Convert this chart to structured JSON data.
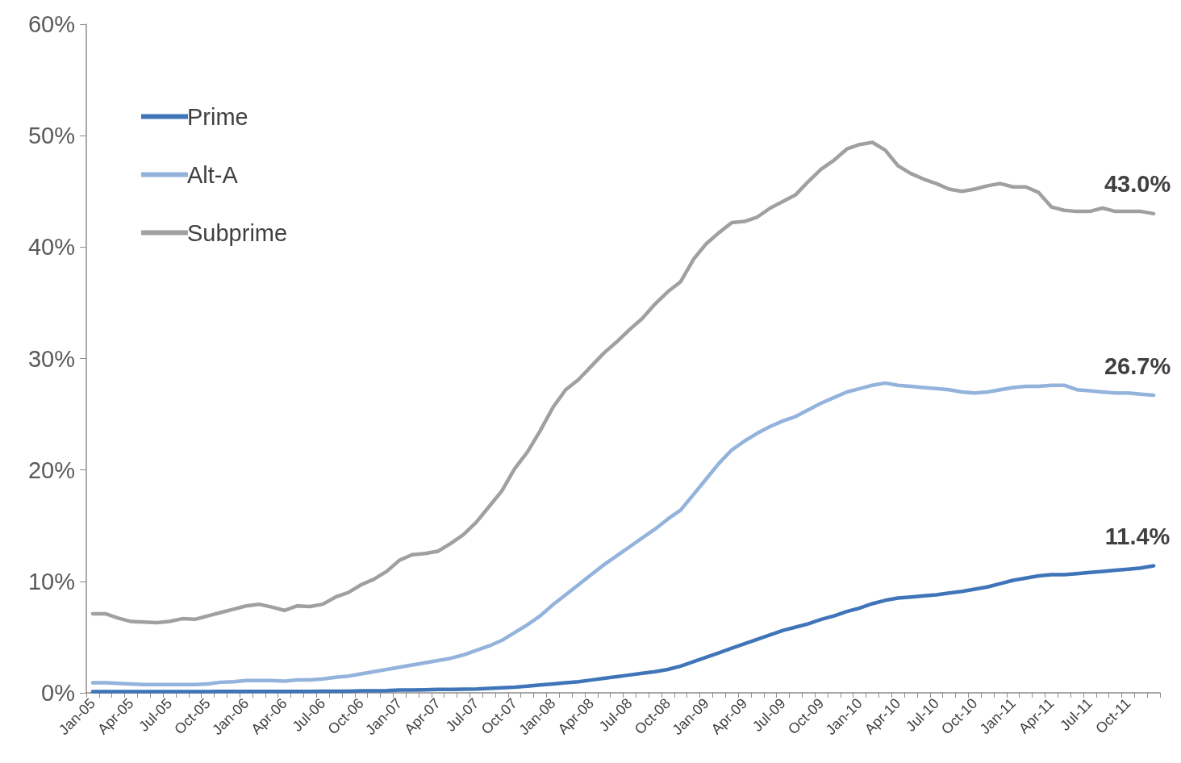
{
  "chart_data": {
    "type": "line",
    "categories": [
      "Jan-05",
      null,
      null,
      "Apr-05",
      null,
      null,
      "Jul-05",
      null,
      null,
      "Oct-05",
      null,
      null,
      "Jan-06",
      null,
      null,
      "Apr-06",
      null,
      null,
      "Jul-06",
      null,
      null,
      "Oct-06",
      null,
      null,
      "Jan-07",
      null,
      null,
      "Apr-07",
      null,
      null,
      "Jul-07",
      null,
      null,
      "Oct-07",
      null,
      null,
      "Jan-08",
      null,
      null,
      "Apr-08",
      null,
      null,
      "Jul-08",
      null,
      null,
      "Oct-08",
      null,
      null,
      "Jan-09",
      null,
      null,
      "Apr-09",
      null,
      null,
      "Jul-09",
      null,
      null,
      "Oct-09",
      null,
      null,
      "Jan-10",
      null,
      null,
      "Apr-10",
      null,
      null,
      "Jul-10",
      null,
      null,
      "Oct-10",
      null,
      null,
      "Jan-11",
      null,
      null,
      "Apr-11",
      null,
      null,
      "Jul-11",
      null,
      null,
      "Oct-11",
      null,
      null
    ],
    "series": [
      {
        "name": "Prime",
        "color": "#3f75b8",
        "values": [
          0.1,
          0.1,
          0.1,
          0.1,
          0.1,
          0.1,
          0.1,
          0.1,
          0.1,
          0.1,
          0.12,
          0.12,
          0.12,
          0.12,
          0.12,
          0.12,
          0.12,
          0.12,
          0.15,
          0.15,
          0.15,
          0.18,
          0.18,
          0.2,
          0.25,
          0.25,
          0.28,
          0.3,
          0.3,
          0.33,
          0.35,
          0.4,
          0.45,
          0.5,
          0.6,
          0.7,
          0.8,
          0.9,
          1.0,
          1.15,
          1.3,
          1.45,
          1.6,
          1.75,
          1.9,
          2.1,
          2.4,
          2.8,
          3.2,
          3.6,
          4.0,
          4.4,
          4.8,
          5.2,
          5.6,
          5.9,
          6.2,
          6.6,
          6.9,
          7.3,
          7.6,
          8.0,
          8.3,
          8.5,
          8.6,
          8.7,
          8.8,
          8.95,
          9.1,
          9.3,
          9.5,
          9.8,
          10.1,
          10.3,
          10.5,
          10.6,
          10.6,
          10.7,
          10.8,
          10.9,
          11.0,
          11.1,
          11.2,
          11.4
        ],
        "value_labels": [
          null,
          null,
          null,
          null,
          null,
          null,
          null,
          null,
          null,
          null,
          null,
          null,
          null,
          null,
          null,
          null,
          null,
          null,
          null,
          null,
          null,
          null,
          null,
          null,
          null,
          null,
          null,
          null,
          null,
          null,
          null,
          null,
          null,
          null,
          null,
          null,
          null,
          null,
          null,
          null,
          null,
          null,
          null,
          null,
          null,
          null,
          null,
          null,
          null,
          null,
          null,
          null,
          null,
          null,
          null,
          null,
          null,
          null,
          null,
          null,
          null,
          null,
          null,
          null,
          null,
          null,
          null,
          null,
          null,
          null,
          null,
          null,
          null,
          null,
          null,
          null,
          null,
          null,
          null,
          null,
          null,
          null,
          null,
          "11.4%"
        ]
      },
      {
        "name": "Alt-A",
        "color": "#93b3dc",
        "values": [
          0.9,
          0.9,
          0.85,
          0.8,
          0.75,
          0.75,
          0.75,
          0.75,
          0.75,
          0.8,
          0.95,
          1.0,
          1.1,
          1.1,
          1.1,
          1.05,
          1.15,
          1.15,
          1.25,
          1.4,
          1.5,
          1.7,
          1.9,
          2.1,
          2.3,
          2.5,
          2.7,
          2.9,
          3.1,
          3.4,
          3.8,
          4.2,
          4.7,
          5.4,
          6.1,
          6.9,
          7.9,
          8.8,
          9.7,
          10.6,
          11.5,
          12.3,
          13.1,
          13.9,
          14.7,
          15.6,
          16.4,
          17.8,
          19.2,
          20.6,
          21.8,
          22.6,
          23.3,
          23.9,
          24.4,
          24.8,
          25.4,
          26.0,
          26.5,
          27.0,
          27.3,
          27.6,
          27.8,
          27.6,
          27.5,
          27.4,
          27.3,
          27.2,
          27.0,
          26.9,
          27.0,
          27.2,
          27.4,
          27.5,
          27.5,
          27.6,
          27.6,
          27.2,
          27.1,
          27.0,
          26.9,
          26.9,
          26.8,
          26.7
        ],
        "value_labels": [
          null,
          null,
          null,
          null,
          null,
          null,
          null,
          null,
          null,
          null,
          null,
          null,
          null,
          null,
          null,
          null,
          null,
          null,
          null,
          null,
          null,
          null,
          null,
          null,
          null,
          null,
          null,
          null,
          null,
          null,
          null,
          null,
          null,
          null,
          null,
          null,
          null,
          null,
          null,
          null,
          null,
          null,
          null,
          null,
          null,
          null,
          null,
          null,
          null,
          null,
          null,
          null,
          null,
          null,
          null,
          null,
          null,
          null,
          null,
          null,
          null,
          null,
          null,
          null,
          null,
          null,
          null,
          null,
          null,
          null,
          null,
          null,
          null,
          null,
          null,
          null,
          null,
          null,
          null,
          null,
          null,
          null,
          null,
          "26.7%"
        ]
      },
      {
        "name": "Subprime",
        "color": "#a0a0a0",
        "values": [
          7.1,
          7.1,
          6.7,
          6.4,
          6.35,
          6.3,
          6.4,
          6.65,
          6.6,
          6.9,
          7.2,
          7.5,
          7.8,
          7.95,
          7.7,
          7.4,
          7.8,
          7.75,
          7.95,
          8.6,
          9.0,
          9.7,
          10.2,
          10.9,
          11.9,
          12.4,
          12.5,
          12.7,
          13.4,
          14.2,
          15.3,
          16.7,
          18.1,
          20.1,
          21.6,
          23.5,
          25.6,
          27.2,
          28.1,
          29.3,
          30.5,
          31.5,
          32.6,
          33.6,
          34.9,
          36.0,
          36.9,
          38.9,
          40.3,
          41.3,
          42.2,
          42.3,
          42.7,
          43.5,
          44.1,
          44.7,
          45.9,
          47.0,
          47.8,
          48.8,
          49.2,
          49.4,
          48.7,
          47.3,
          46.6,
          46.1,
          45.7,
          45.2,
          45.0,
          45.2,
          45.5,
          45.7,
          45.4,
          45.4,
          44.9,
          43.6,
          43.3,
          43.2,
          43.2,
          43.5,
          43.2,
          43.2,
          43.2,
          43.0
        ],
        "value_labels": [
          null,
          null,
          null,
          null,
          null,
          null,
          null,
          null,
          null,
          null,
          null,
          null,
          null,
          null,
          null,
          null,
          null,
          null,
          null,
          null,
          null,
          null,
          null,
          null,
          null,
          null,
          null,
          null,
          null,
          null,
          null,
          null,
          null,
          null,
          null,
          null,
          null,
          null,
          null,
          null,
          null,
          null,
          null,
          null,
          null,
          null,
          null,
          null,
          null,
          null,
          null,
          null,
          null,
          null,
          null,
          null,
          null,
          null,
          null,
          null,
          null,
          null,
          null,
          null,
          null,
          null,
          null,
          null,
          null,
          null,
          null,
          null,
          null,
          null,
          null,
          null,
          null,
          null,
          null,
          null,
          null,
          null,
          null,
          "43.0%"
        ]
      }
    ],
    "ylim": [
      0,
      60
    ],
    "yticks": [
      {
        "value": 0,
        "label": "0%"
      },
      {
        "value": 10,
        "label": "10%"
      },
      {
        "value": 20,
        "label": "20%"
      },
      {
        "value": 30,
        "label": "30%"
      },
      {
        "value": 40,
        "label": "40%"
      },
      {
        "value": 50,
        "label": "50%"
      },
      {
        "value": 60,
        "label": "60%"
      }
    ],
    "grid": false,
    "legend": "top left"
  }
}
